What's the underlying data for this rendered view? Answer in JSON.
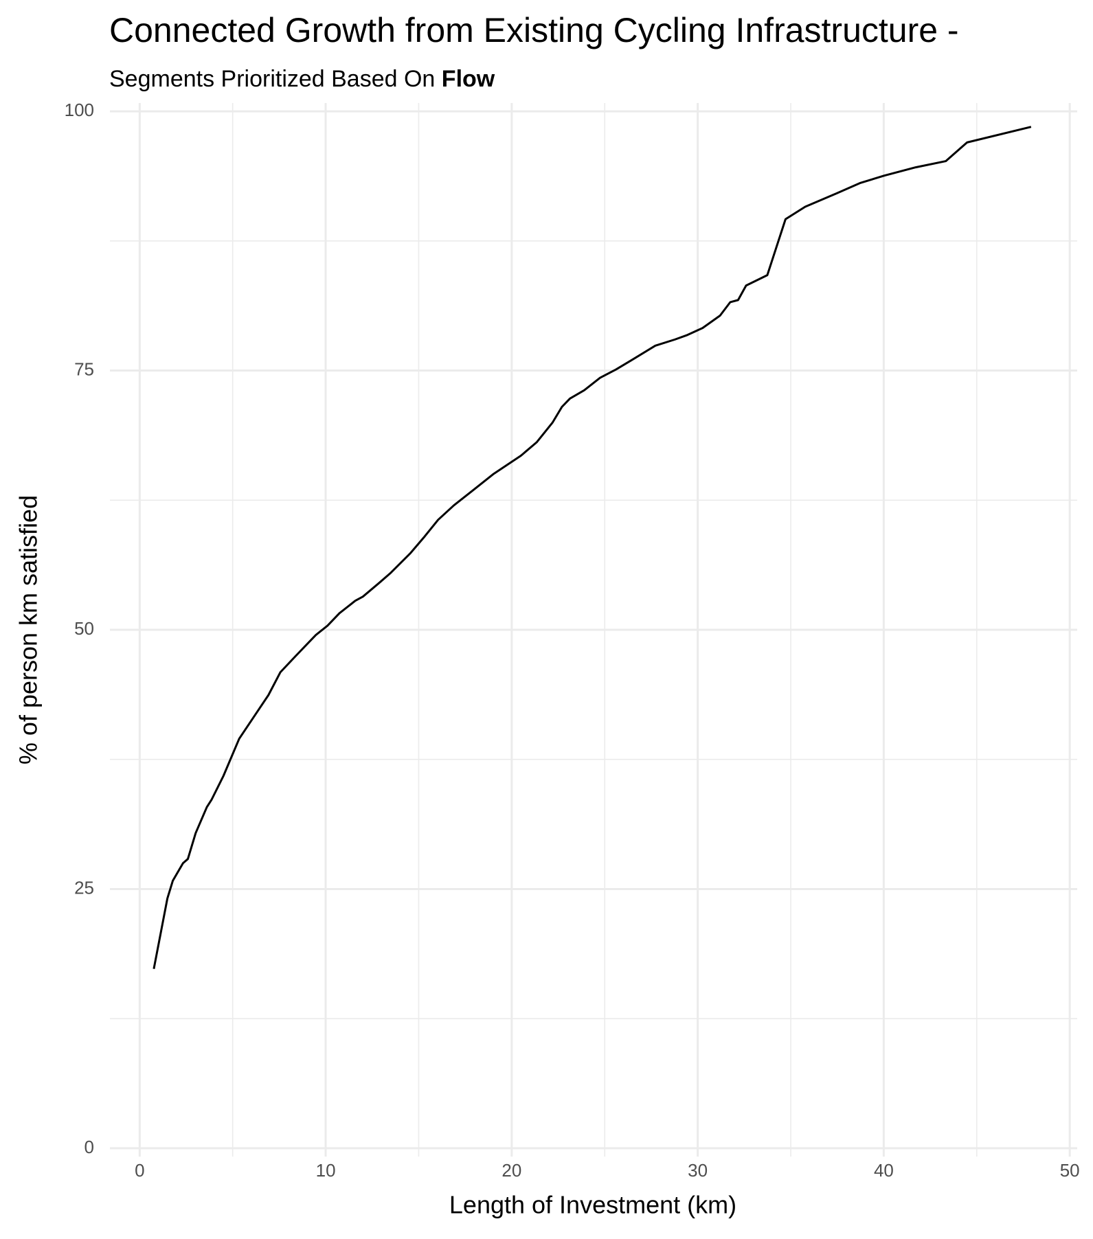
{
  "chart_data": {
    "type": "line",
    "title": "Connected Growth from Existing Cycling Infrastructure -",
    "subtitle": "Segments Prioritized Based On",
    "subtitle_emphasis": "Flow",
    "xlabel": "Length of Investment (km)",
    "ylabel": "% of person km satisfied",
    "xlim": [
      -1.6,
      50.4
    ],
    "ylim": [
      -0.8,
      100.8
    ],
    "xticks": [
      0,
      10,
      20,
      30,
      40,
      50
    ],
    "yticks": [
      0,
      25,
      50,
      75,
      100
    ],
    "xminor": [
      5,
      15,
      25,
      35,
      45
    ],
    "yminor": [
      12.5,
      37.5,
      62.5,
      87.5
    ],
    "grid": true,
    "series": [
      {
        "color": "#000000",
        "x": [
          0.76,
          1.49,
          1.78,
          2.33,
          2.59,
          3.01,
          3.61,
          3.86,
          4.5,
          5.35,
          6.92,
          7.56,
          8.4,
          9.47,
          10.1,
          10.74,
          11.59,
          12.0,
          12.86,
          13.5,
          14.56,
          15.32,
          16.04,
          16.89,
          17.95,
          19.0,
          20.5,
          21.35,
          22.2,
          22.7,
          23.13,
          23.9,
          24.75,
          25.6,
          26.44,
          27.72,
          28.78,
          29.4,
          30.26,
          31.2,
          31.75,
          32.17,
          32.6,
          33.74,
          34.72,
          35.78,
          37.48,
          38.75,
          40.03,
          41.72,
          43.34,
          44.48,
          47.92
        ],
        "values": [
          17.3,
          24.1,
          25.8,
          27.5,
          27.9,
          30.4,
          32.9,
          33.6,
          35.9,
          39.5,
          43.7,
          45.9,
          47.5,
          49.5,
          50.4,
          51.6,
          52.8,
          53.2,
          54.5,
          55.5,
          57.4,
          59.0,
          60.6,
          62.0,
          63.5,
          65.0,
          66.8,
          68.1,
          70.0,
          71.5,
          72.3,
          73.1,
          74.3,
          75.1,
          76.0,
          77.4,
          78.0,
          78.4,
          79.1,
          80.3,
          81.6,
          81.8,
          83.2,
          84.2,
          89.6,
          90.8,
          92.1,
          93.1,
          93.8,
          94.6,
          95.2,
          97.0,
          98.5
        ]
      }
    ]
  }
}
